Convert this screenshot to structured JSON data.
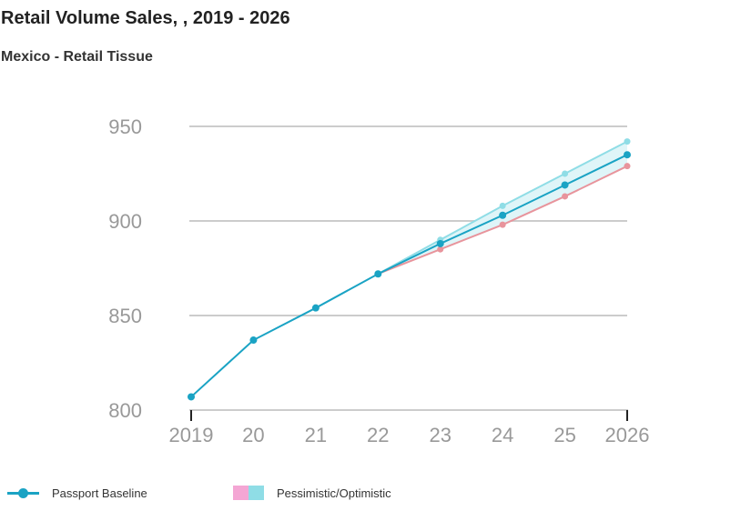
{
  "header": {
    "title": "Retail Volume Sales, , 2019 - 2026",
    "subtitle": "Mexico - Retail Tissue"
  },
  "legend": {
    "baseline_label": "Passport Baseline",
    "band_label": "Pessimistic/Optimistic"
  },
  "colors": {
    "baseline": "#1aa3c4",
    "optimistic": "#8fdde6",
    "pessimistic": "#e8949c",
    "band_fill": "#dff5f8",
    "grid": "#cccccc",
    "tick_text": "#999999"
  },
  "chart_data": {
    "type": "line",
    "categories": [
      "2019",
      "20",
      "21",
      "22",
      "23",
      "24",
      "25",
      "2026"
    ],
    "ylim": [
      800,
      950
    ],
    "yticks": [
      800,
      850,
      900,
      950
    ],
    "grid": true,
    "legend_position": "bottom-left",
    "series": [
      {
        "name": "Passport Baseline",
        "values": [
          807,
          837,
          854,
          872,
          888,
          903,
          919,
          935
        ]
      },
      {
        "name": "Optimistic",
        "values": [
          807,
          837,
          854,
          872,
          890,
          908,
          925,
          942
        ]
      },
      {
        "name": "Pessimistic",
        "values": [
          807,
          837,
          854,
          872,
          885,
          898,
          913,
          929
        ]
      }
    ]
  }
}
